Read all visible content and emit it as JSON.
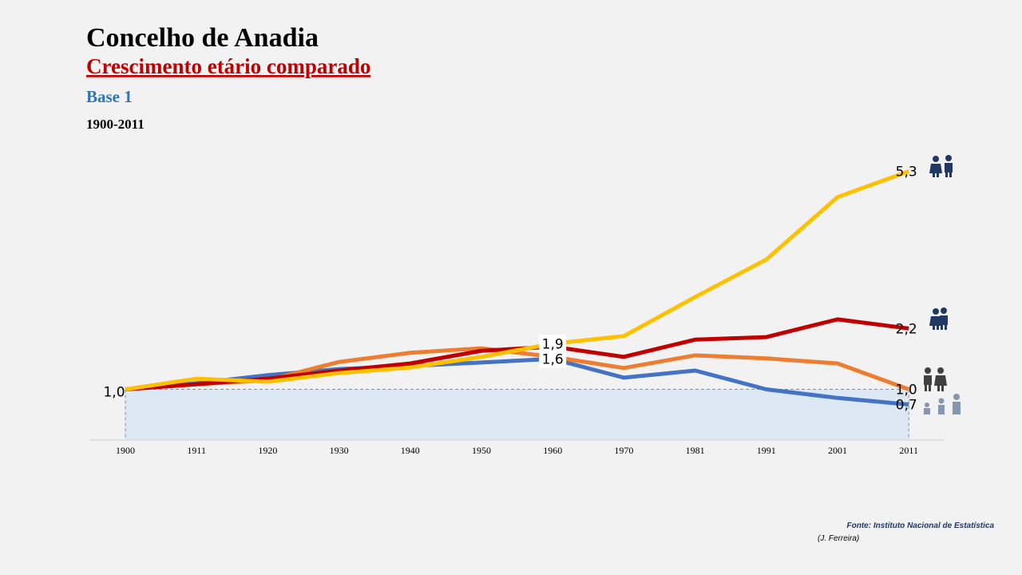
{
  "chart_data": {
    "type": "line",
    "title": "Concelho de Anadia",
    "subtitle": "Crescimento etário comparado",
    "base_label": "Base 1",
    "period": "1900-2011",
    "source": "Fonte: Instituto Nacional de Estatística",
    "author": "(J. Ferreira)",
    "categories": [
      "1900",
      "1911",
      "1920",
      "1930",
      "1940",
      "1950",
      "1960",
      "1970",
      "1981",
      "1991",
      "2001",
      "2011"
    ],
    "ylim": [
      0,
      6
    ],
    "reference_value": 1,
    "series": [
      {
        "color": "#4472c4",
        "values": [
          1.0,
          1.12,
          1.28,
          1.4,
          1.46,
          1.53,
          1.6,
          1.23,
          1.37,
          1.0,
          0.83,
          0.7
        ],
        "value_labels": [
          null,
          null,
          null,
          null,
          null,
          null,
          "1,6",
          null,
          null,
          null,
          null,
          "0,7"
        ]
      },
      {
        "color": "#ed7d31",
        "values": [
          1.0,
          1.1,
          1.18,
          1.54,
          1.72,
          1.81,
          1.64,
          1.42,
          1.67,
          1.61,
          1.51,
          1.0
        ],
        "value_labels": [
          null,
          null,
          null,
          null,
          null,
          null,
          null,
          null,
          null,
          null,
          null,
          "1,0"
        ]
      },
      {
        "color": "#c00000",
        "values": [
          1.0,
          1.1,
          1.21,
          1.37,
          1.51,
          1.76,
          1.84,
          1.64,
          1.98,
          2.03,
          2.38,
          2.2
        ],
        "value_labels": [
          null,
          null,
          null,
          null,
          null,
          null,
          null,
          null,
          null,
          null,
          null,
          "2,2"
        ]
      },
      {
        "color": "#ffc000",
        "values": [
          1.0,
          1.21,
          1.15,
          1.32,
          1.43,
          1.64,
          1.9,
          2.05,
          2.82,
          3.56,
          4.79,
          5.3
        ],
        "value_labels": [
          "1,0",
          null,
          null,
          null,
          null,
          null,
          "1,9",
          null,
          null,
          null,
          null,
          "5,3"
        ]
      }
    ]
  }
}
